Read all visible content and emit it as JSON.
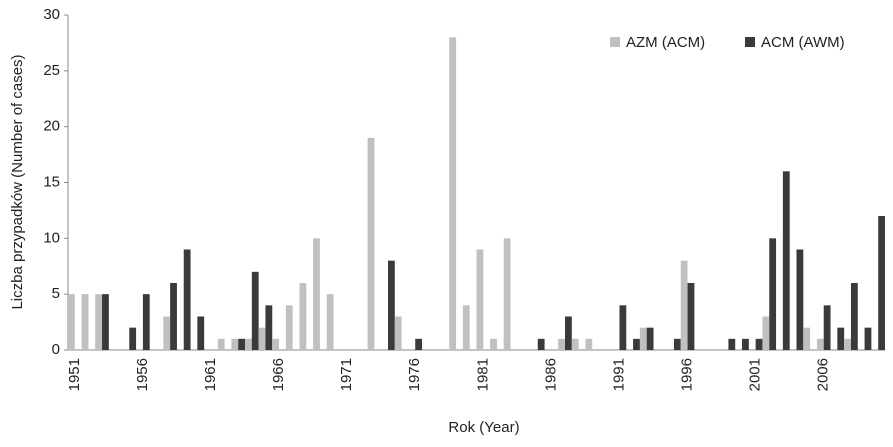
{
  "chart_data": {
    "type": "bar",
    "x_label": "Rok (Year)",
    "y_label": "Liczba przypadków (Number of cases)",
    "categories": [
      "1951",
      null,
      null,
      null,
      null,
      "1956",
      null,
      null,
      null,
      null,
      "1961",
      null,
      null,
      null,
      null,
      "1966",
      null,
      null,
      null,
      null,
      "1971",
      null,
      null,
      null,
      null,
      "1976",
      null,
      null,
      null,
      null,
      "1981",
      null,
      null,
      null,
      null,
      "1986",
      null,
      null,
      null,
      null,
      "1991",
      null,
      null,
      null,
      null,
      "1996",
      null,
      null,
      null,
      null,
      "2001",
      null,
      null,
      null,
      null,
      "2006",
      null,
      null,
      null,
      null
    ],
    "series": [
      {
        "name": "AZM (ACM)",
        "color": "#c0c0c0",
        "values": [
          5,
          5,
          5,
          0,
          0,
          0,
          0,
          3,
          0,
          0,
          0,
          1,
          1,
          1,
          2,
          1,
          4,
          6,
          10,
          5,
          0,
          0,
          19,
          0,
          3,
          0,
          0,
          0,
          28,
          4,
          9,
          1,
          10,
          0,
          0,
          0,
          1,
          1,
          1,
          0,
          0,
          0,
          2,
          0,
          0,
          8,
          0,
          0,
          0,
          0,
          0,
          3,
          0,
          0,
          2,
          1,
          0,
          1,
          0,
          0
        ]
      },
      {
        "name": "ACM (AWM)",
        "color": "#3a3a3a",
        "values": [
          0,
          0,
          5,
          0,
          2,
          5,
          0,
          6,
          9,
          3,
          0,
          0,
          1,
          7,
          4,
          0,
          0,
          0,
          0,
          0,
          0,
          0,
          0,
          8,
          0,
          1,
          0,
          0,
          0,
          0,
          0,
          0,
          0,
          0,
          1,
          0,
          3,
          0,
          0,
          0,
          4,
          1,
          2,
          0,
          1,
          6,
          0,
          0,
          1,
          1,
          1,
          10,
          16,
          9,
          0,
          4,
          2,
          6,
          2,
          12
        ]
      }
    ],
    "ylim": [
      0,
      30
    ],
    "yticks": [
      0,
      5,
      10,
      15,
      20,
      25,
      30
    ],
    "grid": false,
    "legend": "top-right"
  }
}
